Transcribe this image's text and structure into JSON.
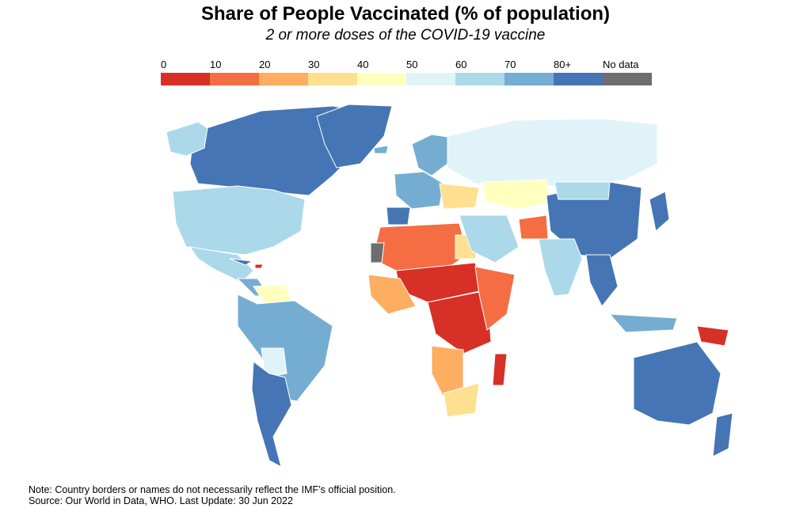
{
  "title": "Share of People Vaccinated (% of population)",
  "subtitle": "2 or more doses of the COVID-19 vaccine",
  "legend": {
    "bins": [
      {
        "label": "0",
        "color": "#d73027"
      },
      {
        "label": "10",
        "color": "#f46d43"
      },
      {
        "label": "20",
        "color": "#fdae61"
      },
      {
        "label": "30",
        "color": "#fee090"
      },
      {
        "label": "40",
        "color": "#ffffbf"
      },
      {
        "label": "50",
        "color": "#e0f3f8"
      },
      {
        "label": "60",
        "color": "#abd9e9"
      },
      {
        "label": "70",
        "color": "#74add1"
      },
      {
        "label": "80+",
        "color": "#4575b4"
      }
    ],
    "no_data": {
      "label": "No data",
      "color": "#6e6e6e"
    }
  },
  "regions": [
    {
      "name": "canada",
      "color": "#4575b4"
    },
    {
      "name": "greenland",
      "color": "#4575b4"
    },
    {
      "name": "alaska",
      "color": "#abd9e9"
    },
    {
      "name": "usa",
      "color": "#abd9e9"
    },
    {
      "name": "mexico",
      "color": "#abd9e9"
    },
    {
      "name": "central-america",
      "color": "#74add1"
    },
    {
      "name": "cuba",
      "color": "#4575b4"
    },
    {
      "name": "haiti",
      "color": "#d73027"
    },
    {
      "name": "venezuela",
      "color": "#ffffbf"
    },
    {
      "name": "brazil",
      "color": "#74add1"
    },
    {
      "name": "bolivia",
      "color": "#e0f3f8"
    },
    {
      "name": "chile-argentina",
      "color": "#4575b4"
    },
    {
      "name": "iceland",
      "color": "#74add1"
    },
    {
      "name": "scandinavia",
      "color": "#74add1"
    },
    {
      "name": "western-europe",
      "color": "#74add1"
    },
    {
      "name": "iberia",
      "color": "#4575b4"
    },
    {
      "name": "eastern-europe",
      "color": "#fee090"
    },
    {
      "name": "russia",
      "color": "#e0f3f8"
    },
    {
      "name": "kazakhstan",
      "color": "#ffffbf"
    },
    {
      "name": "china",
      "color": "#4575b4"
    },
    {
      "name": "mongolia",
      "color": "#abd9e9"
    },
    {
      "name": "north-africa",
      "color": "#f46d43"
    },
    {
      "name": "egypt",
      "color": "#fee090"
    },
    {
      "name": "sahel",
      "color": "#d73027"
    },
    {
      "name": "west-africa",
      "color": "#fdae61"
    },
    {
      "name": "central-africa",
      "color": "#d73027"
    },
    {
      "name": "east-africa",
      "color": "#f46d43"
    },
    {
      "name": "angola-namibia",
      "color": "#fdae61"
    },
    {
      "name": "southern-africa",
      "color": "#fee090"
    },
    {
      "name": "madagascar",
      "color": "#d73027"
    },
    {
      "name": "middle-east",
      "color": "#abd9e9"
    },
    {
      "name": "afghanistan",
      "color": "#f46d43"
    },
    {
      "name": "india",
      "color": "#abd9e9"
    },
    {
      "name": "southeast-asia",
      "color": "#4575b4"
    },
    {
      "name": "indonesia",
      "color": "#74add1"
    },
    {
      "name": "papua-new-guinea",
      "color": "#d73027"
    },
    {
      "name": "japan",
      "color": "#4575b4"
    },
    {
      "name": "australia",
      "color": "#4575b4"
    },
    {
      "name": "new-zealand",
      "color": "#4575b4"
    },
    {
      "name": "western-sahara",
      "color": "#6e6e6e"
    }
  ],
  "footer": {
    "note": "Note: Country borders or names do not necessarily reflect the IMF’s official position.",
    "source": "Source: Our World in Data, WHO. Last Update: 30 Jun 2022"
  }
}
